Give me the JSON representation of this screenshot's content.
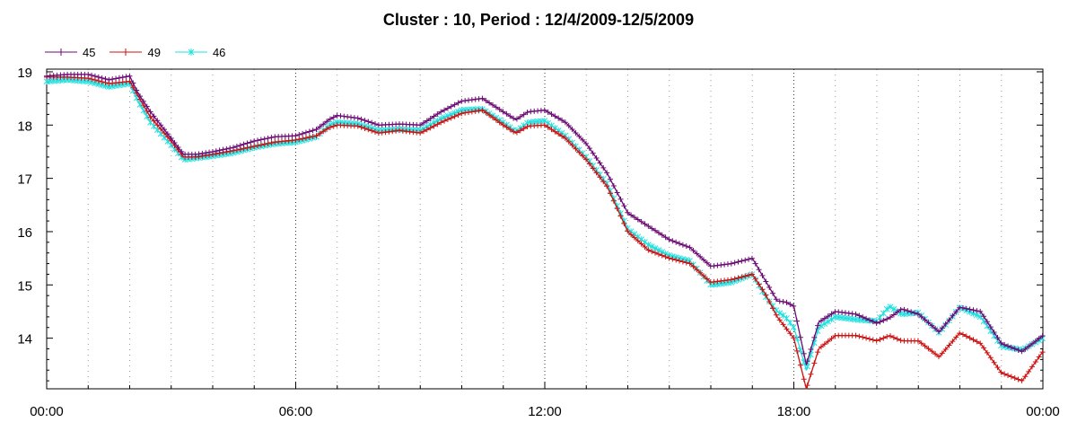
{
  "chart_data": {
    "type": "line",
    "title": "Cluster : 10, Period : 12/4/2009-12/5/2009",
    "xlabel": "",
    "ylabel": "",
    "x_ticks": [
      "00:00",
      "06:00",
      "12:00",
      "18:00",
      "00:00"
    ],
    "x_range_hours": [
      0,
      24
    ],
    "ylim": [
      13.05,
      19.05
    ],
    "y_ticks": [
      14,
      15,
      16,
      17,
      18,
      19
    ],
    "grid": "dotted",
    "legend_position": "top-left",
    "x_hours": [
      0,
      0.5,
      1,
      1.5,
      2,
      2.2,
      2.5,
      3,
      3.3,
      3.6,
      4,
      4.5,
      5,
      5.5,
      6,
      6.5,
      6.8,
      7,
      7.5,
      8,
      8.5,
      9,
      9.5,
      10,
      10.5,
      11,
      11.3,
      11.6,
      12,
      12.5,
      13,
      13.5,
      14,
      14.5,
      15,
      15.5,
      16,
      16.5,
      17,
      17.3,
      17.6,
      17.8,
      18,
      18.3,
      18.6,
      19,
      19.5,
      20,
      20.3,
      20.6,
      21,
      21.5,
      22,
      22.5,
      23,
      23.5,
      24
    ],
    "series": [
      {
        "name": "45",
        "color": "#6b0a73",
        "marker": "plus",
        "values": [
          18.92,
          18.95,
          18.95,
          18.85,
          18.92,
          18.6,
          18.25,
          17.75,
          17.45,
          17.45,
          17.5,
          17.58,
          17.7,
          17.78,
          17.8,
          17.92,
          18.1,
          18.18,
          18.13,
          18.0,
          18.02,
          18.0,
          18.25,
          18.45,
          18.5,
          18.25,
          18.1,
          18.25,
          18.28,
          18.05,
          17.65,
          17.1,
          16.35,
          16.1,
          15.85,
          15.7,
          15.35,
          15.4,
          15.5,
          15.1,
          14.7,
          14.68,
          14.6,
          13.5,
          14.3,
          14.5,
          14.45,
          14.28,
          14.38,
          14.55,
          14.45,
          14.12,
          14.58,
          14.5,
          13.9,
          13.75,
          14.05
        ]
      },
      {
        "name": "49",
        "color": "#cc1111",
        "marker": "plus",
        "values": [
          18.9,
          18.9,
          18.88,
          18.78,
          18.82,
          18.55,
          18.15,
          17.7,
          17.4,
          17.4,
          17.45,
          17.52,
          17.6,
          17.68,
          17.72,
          17.8,
          17.95,
          18.0,
          17.98,
          17.85,
          17.9,
          17.85,
          18.05,
          18.22,
          18.28,
          18.0,
          17.85,
          17.98,
          18.0,
          17.75,
          17.35,
          16.85,
          16.0,
          15.65,
          15.5,
          15.4,
          15.05,
          15.1,
          15.2,
          14.85,
          14.4,
          14.2,
          14.0,
          13.05,
          13.8,
          14.05,
          14.05,
          13.95,
          14.05,
          13.95,
          13.95,
          13.65,
          14.1,
          13.9,
          13.35,
          13.2,
          13.75
        ]
      },
      {
        "name": "46",
        "color": "#22e0e0",
        "marker": "star",
        "values": [
          18.82,
          18.85,
          18.82,
          18.72,
          18.78,
          18.45,
          18.05,
          17.62,
          17.35,
          17.38,
          17.42,
          17.48,
          17.58,
          17.65,
          17.68,
          17.78,
          18.0,
          18.05,
          18.02,
          17.9,
          17.92,
          17.9,
          18.12,
          18.28,
          18.3,
          18.05,
          17.88,
          18.05,
          18.08,
          17.8,
          17.4,
          16.9,
          16.05,
          15.75,
          15.55,
          15.45,
          15.0,
          15.05,
          15.2,
          14.8,
          14.5,
          14.4,
          14.2,
          13.4,
          14.2,
          14.4,
          14.35,
          14.32,
          14.6,
          14.45,
          14.48,
          14.1,
          14.58,
          14.4,
          13.85,
          13.78,
          14.0
        ]
      }
    ]
  }
}
